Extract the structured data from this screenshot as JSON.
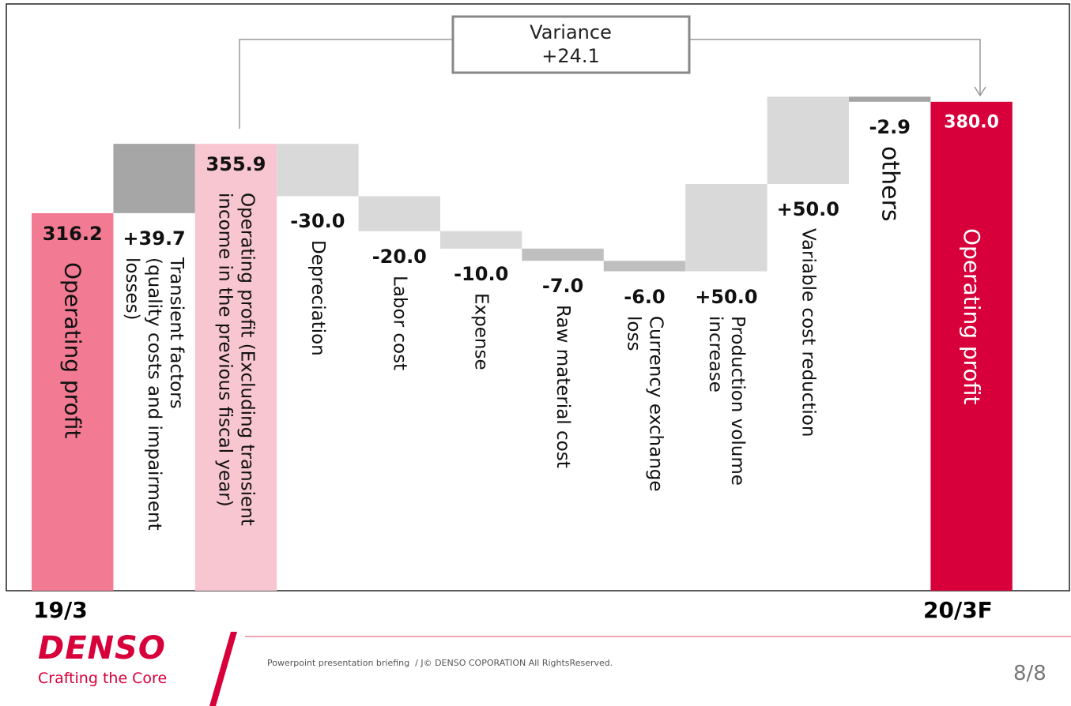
{
  "chart_data": {
    "type": "waterfall",
    "categories": [
      "Operating profit",
      "Transient factors\n(quality costs and impairment losses)",
      "Operating profit (Excluding transient\nincome in the previous fiscal year)",
      "Depreciation",
      "Labor cost",
      "Expense",
      "Raw material cost",
      "Currency exchange\nloss",
      "Production volume\nincrease",
      "Variable cost reduction",
      "others",
      "Operating profit"
    ],
    "values": [
      316.2,
      39.7,
      355.9,
      -30.0,
      -20.0,
      -10.0,
      -7.0,
      -6.0,
      50.0,
      50.0,
      -2.9,
      380.0
    ],
    "value_labels": [
      "316.2",
      "+39.7",
      "355.9",
      "-30.0",
      "-20.0",
      "-10.0",
      "-7.0",
      "-6.0",
      "+50.0",
      "+50.0",
      "-2.9",
      "380.0"
    ],
    "measure": [
      "total",
      "relative",
      "total",
      "relative",
      "relative",
      "relative",
      "relative",
      "relative",
      "relative",
      "relative",
      "relative",
      "total"
    ],
    "colors": [
      "#f27a93",
      "#a6a6a6",
      "#f8c6d1",
      "#d9d9d9",
      "#d9d9d9",
      "#d9d9d9",
      "#bfbfbf",
      "#bfbfbf",
      "#d9d9d9",
      "#d9d9d9",
      "#a6a6a6",
      "#d7003a"
    ],
    "ylim": [
      100,
      436
    ],
    "annotation": {
      "label": "Variance",
      "value": "+24.1"
    },
    "period_labels": [
      "19/3",
      "20/3F"
    ]
  },
  "footer": {
    "brand": "DENSO",
    "tagline": "Crafting the Core",
    "note": "Powerpoint presentation briefing  / J© DENSO COPORATION All RightsReserved.",
    "page": "8/8"
  }
}
